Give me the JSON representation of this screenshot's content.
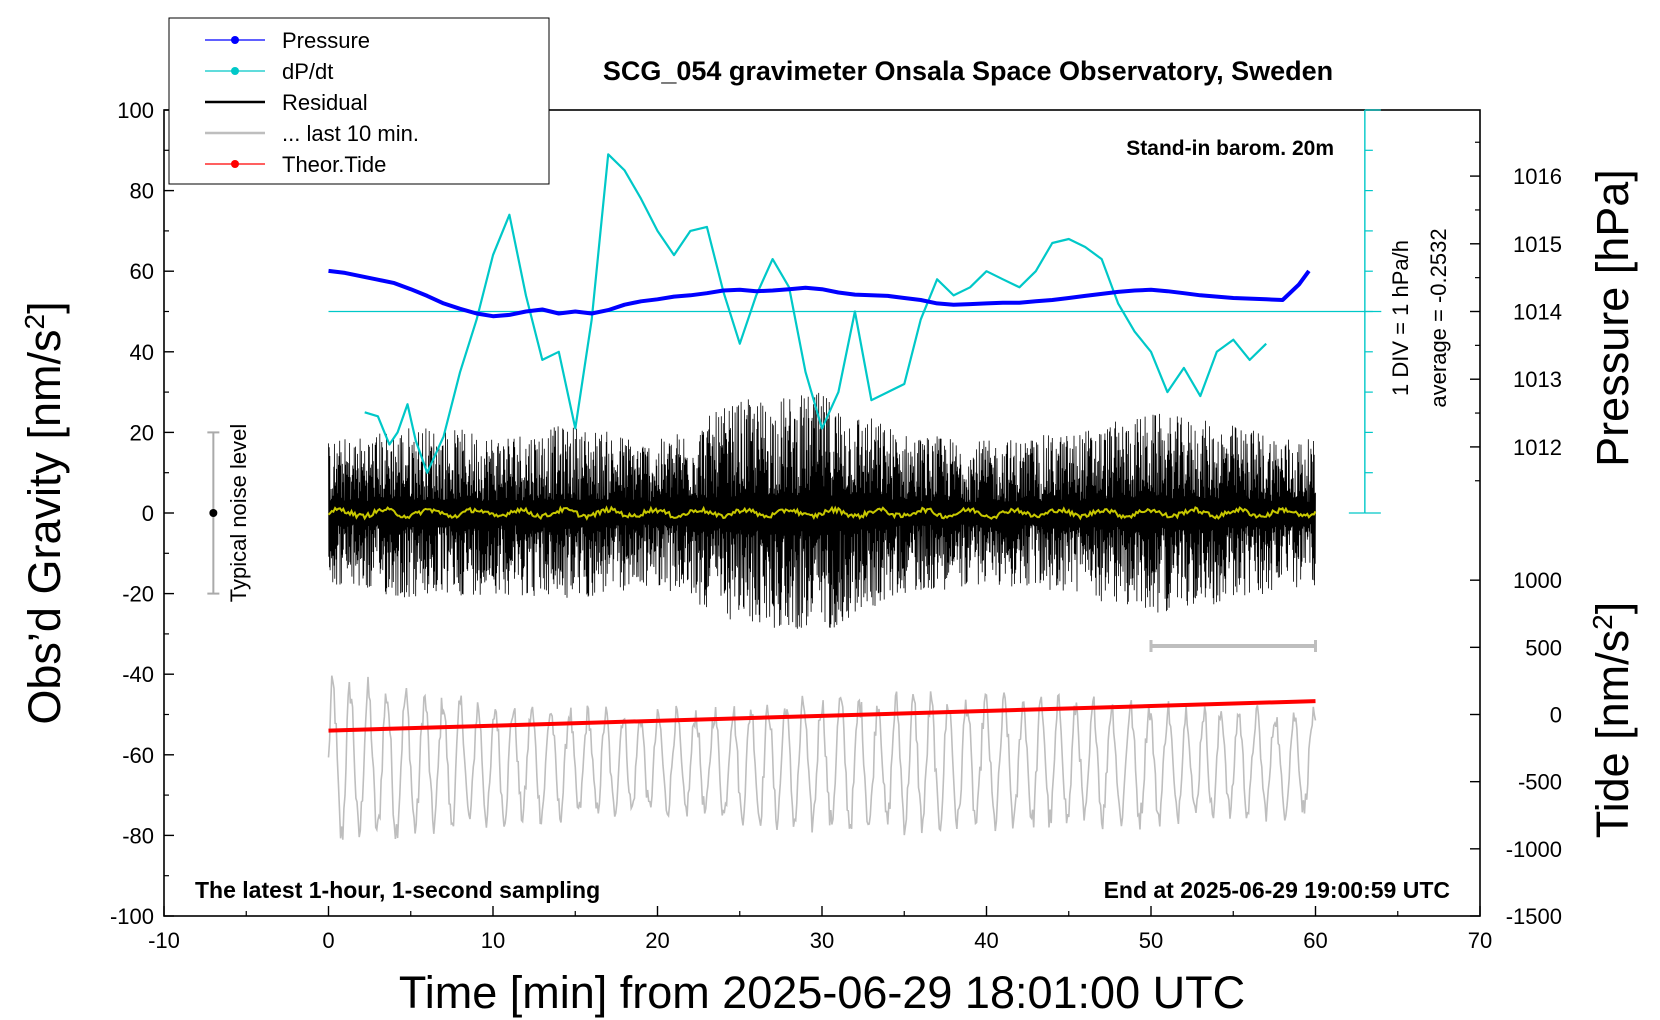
{
  "chart_data": {
    "type": "line",
    "title": "SCG_054 gravimeter Onsala Space Observatory, Sweden",
    "xlabel": "Time [min] from 2025-06-29 18:01:00 UTC",
    "ylabel_left": "Obs’d Gravity [nm/s",
    "ylabel_left_sup": "2",
    "ylabel_left_end": "]",
    "ylabel_right_pressure": "Pressure [hPa]",
    "ylabel_right_tide": "Tide [nm/s",
    "ylabel_right_tide_sup": "2",
    "ylabel_right_tide_end": "]",
    "xlim": [
      -10,
      70
    ],
    "ylim": [
      -100,
      100
    ],
    "pressure_lim": [
      1011,
      1017
    ],
    "tide_lim": [
      -1500,
      1500
    ],
    "x_ticks": [
      "-10",
      "0",
      "10",
      "20",
      "30",
      "40",
      "50",
      "60",
      "70"
    ],
    "y_ticks": [
      "-100",
      "-80",
      "-60",
      "-40",
      "-20",
      "0",
      "20",
      "40",
      "60",
      "80",
      "100"
    ],
    "pressure_ticks": [
      "1012",
      "1013",
      "1014",
      "1015",
      "1016"
    ],
    "tide_ticks": [
      "-1500",
      "-1000",
      "-500",
      "0",
      "500",
      "1000"
    ],
    "legend": [
      {
        "label": "Pressure",
        "color": "#0000ff",
        "marker": true
      },
      {
        "label": "dP/dt",
        "color": "#00c8c8",
        "marker": true
      },
      {
        "label": "Residual",
        "color": "#000000",
        "marker": false
      },
      {
        "label": "... last 10 min.",
        "color": "#bebebe",
        "marker": false
      },
      {
        "label": "Theor.Tide",
        "color": "#ff0000",
        "marker": true
      }
    ],
    "annotations": {
      "stand_in": "Stand-in barom. 20m",
      "div_label": "1 DIV = 1 hPa/h",
      "average_label": "average = -0.2532",
      "noise_label": "Typical noise level",
      "bottom_left": "The latest 1-hour, 1-second sampling",
      "bottom_right": "End at 2025-06-29 19:00:59 UTC"
    },
    "dpdt_baseline_obs": 50,
    "last10_bar": [
      50,
      60
    ],
    "series": [
      {
        "name": "Pressure",
        "unit": "hPa",
        "x": [
          0,
          1,
          2,
          3,
          4,
          5,
          6,
          7,
          8,
          9,
          10,
          11,
          12,
          13,
          14,
          15,
          16,
          17,
          18,
          19,
          20,
          21,
          22,
          23,
          24,
          25,
          26,
          27,
          28,
          29,
          30,
          31,
          32,
          33,
          34,
          35,
          36,
          37,
          38,
          39,
          40,
          41,
          42,
          43,
          44,
          45,
          46,
          47,
          48,
          49,
          50,
          51,
          52,
          53,
          54,
          55,
          56,
          57,
          58,
          59,
          59.6
        ],
        "y": [
          1014.6,
          1014.57,
          1014.52,
          1014.47,
          1014.42,
          1014.33,
          1014.23,
          1014.12,
          1014.04,
          1013.97,
          1013.93,
          1013.95,
          1014.0,
          1014.03,
          1013.97,
          1014.0,
          1013.97,
          1014.02,
          1014.1,
          1014.15,
          1014.18,
          1014.22,
          1014.24,
          1014.27,
          1014.31,
          1014.32,
          1014.3,
          1014.31,
          1014.33,
          1014.35,
          1014.33,
          1014.28,
          1014.25,
          1014.24,
          1014.23,
          1014.2,
          1014.17,
          1014.12,
          1014.1,
          1014.11,
          1014.12,
          1014.13,
          1014.13,
          1014.15,
          1014.17,
          1014.2,
          1014.23,
          1014.26,
          1014.29,
          1014.31,
          1014.32,
          1014.3,
          1014.27,
          1014.24,
          1014.22,
          1014.2,
          1014.19,
          1014.18,
          1014.17,
          1014.4,
          1014.6
        ]
      },
      {
        "name": "dP/dt",
        "unit": "obs-axis",
        "x": [
          2.2,
          3,
          3.7,
          4.2,
          4.8,
          5.3,
          6.0,
          7.0,
          8.0,
          9.0,
          10.0,
          11.0,
          12.0,
          13.0,
          14.0,
          15.0,
          16.0,
          17.0,
          18.0,
          19.0,
          20.0,
          21.0,
          22.0,
          23.0,
          24.0,
          25.0,
          26.0,
          27.0,
          28.0,
          29.0,
          30.0,
          31.0,
          32.0,
          33.0,
          34.0,
          35.0,
          36.0,
          37.0,
          38.0,
          39.0,
          40.0,
          41.0,
          42.0,
          43.0,
          44.0,
          45.0,
          46.0,
          47.0,
          48.0,
          49.0,
          50.0,
          51.0,
          52.0,
          53.0,
          54.0,
          55.0,
          56.0,
          57.0
        ],
        "y": [
          25,
          24,
          17,
          20,
          27,
          18,
          10,
          19,
          35,
          48,
          64,
          74,
          54,
          38,
          40,
          21,
          48,
          89,
          85,
          78,
          70,
          64,
          70,
          71,
          55,
          42,
          54,
          63,
          56,
          35,
          21,
          30,
          50,
          28,
          30,
          32,
          48,
          58,
          54,
          56,
          60,
          58,
          56,
          60,
          67,
          68,
          66,
          63,
          52,
          45,
          40,
          30,
          36,
          29,
          40,
          43,
          38,
          42
        ]
      },
      {
        "name": "Theor.Tide",
        "unit": "nm/s2",
        "x": [
          0,
          60
        ],
        "y": [
          -120,
          100
        ]
      }
    ],
    "residual_envelope": {
      "x": [
        0,
        5,
        10,
        15,
        20,
        25,
        30,
        35,
        40,
        45,
        50,
        55,
        60
      ],
      "amplitude": [
        18,
        22,
        20,
        22,
        18,
        28,
        30,
        20,
        18,
        20,
        25,
        22,
        18
      ]
    },
    "last10_envelope": {
      "x": [
        0,
        10,
        20,
        30,
        40,
        50,
        60
      ],
      "amplitude": [
        25,
        18,
        15,
        20,
        20,
        18,
        15
      ],
      "center": -62
    }
  },
  "colors": {
    "pressure": "#0000ff",
    "dpdt": "#00c8c8",
    "residual": "#000000",
    "smooth": "#c8c800",
    "last10": "#bebebe",
    "tide": "#ff0000",
    "noise_bar": "#aaaaaa"
  }
}
